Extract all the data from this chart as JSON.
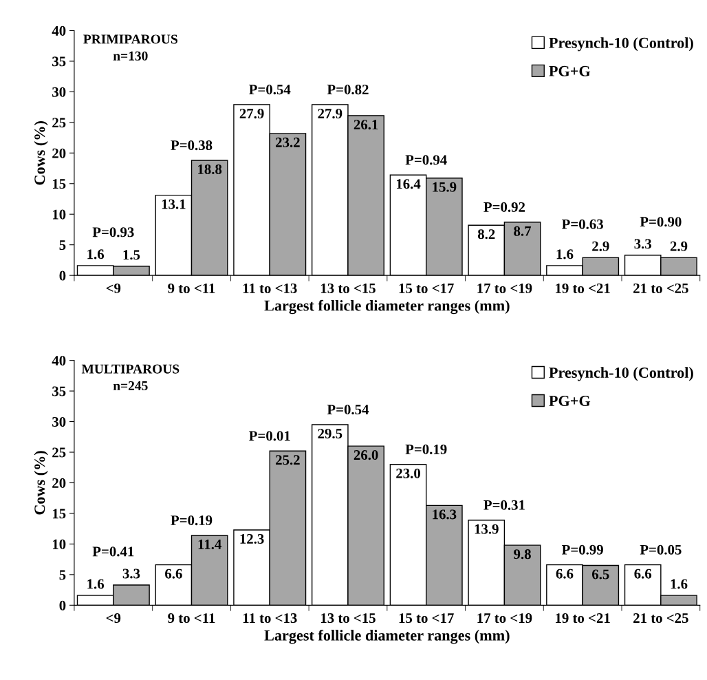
{
  "chart_data": [
    {
      "type": "bar",
      "title": "PRIMIPAROUS\nn=130",
      "xlabel": "Largest follicle diameter ranges (mm)",
      "ylabel": "Cows (%)",
      "categories": [
        "<9",
        "9 to <11",
        "11 to <13",
        "13 to <15",
        "15 to <17",
        "17 to <19",
        "19 to <21",
        "21 to <25"
      ],
      "series": [
        {
          "name": "Presynch-10 (Control)",
          "color": "#ffffff",
          "values": [
            1.6,
            13.1,
            27.9,
            27.9,
            16.4,
            8.2,
            1.6,
            3.3
          ],
          "value_labels": [
            "1.6",
            "13.1",
            "27.9",
            "27.9",
            "16.4",
            "8.2",
            "1.6",
            "3.3"
          ]
        },
        {
          "name": "PG+G",
          "color": "#a6a6a6",
          "values": [
            1.5,
            18.8,
            23.2,
            26.1,
            15.9,
            8.7,
            2.9,
            2.9
          ],
          "value_labels": [
            "1.5",
            "18.8",
            "23.2",
            "26.1",
            "15.9",
            "8.7",
            "2.9",
            "2.9"
          ]
        }
      ],
      "ylim": [
        0,
        40
      ],
      "yticks": [
        0,
        5,
        10,
        15,
        20,
        25,
        30,
        35,
        40
      ],
      "legend": "top right",
      "annotations": [
        "P=0.93",
        "P=0.38",
        "P=0.54",
        "P=0.82",
        "P=0.94",
        "P=0.92",
        "P=0.63",
        "P=0.90"
      ]
    },
    {
      "type": "bar",
      "title": "MULTIPAROUS\nn=245",
      "xlabel": "Largest follicle diameter ranges (mm)",
      "ylabel": "Cows (%)",
      "categories": [
        "<9",
        "9 to <11",
        "11 to <13",
        "13 to <15",
        "15 to <17",
        "17 to <19",
        "19 to <21",
        "21 to <25"
      ],
      "series": [
        {
          "name": "Presynch-10 (Control)",
          "color": "#ffffff",
          "values": [
            1.6,
            6.6,
            12.3,
            29.5,
            23.0,
            13.9,
            6.6,
            6.6
          ],
          "value_labels": [
            "1.6",
            "6.6",
            "12.3",
            "29.5",
            "23.0",
            "13.9",
            "6.6",
            "6.6"
          ]
        },
        {
          "name": "PG+G",
          "color": "#a6a6a6",
          "values": [
            3.3,
            11.4,
            25.2,
            26.0,
            16.3,
            9.8,
            6.5,
            1.6
          ],
          "value_labels": [
            "3.3",
            "11.4",
            "25.2",
            "26.0",
            "16.3",
            "9.8",
            "6.5",
            "1.6"
          ]
        }
      ],
      "ylim": [
        0,
        40
      ],
      "yticks": [
        0,
        5,
        10,
        15,
        20,
        25,
        30,
        35,
        40
      ],
      "legend": "top right",
      "annotations": [
        "P=0.41",
        "P=0.19",
        "P=0.01",
        "P=0.54",
        "P=0.19",
        "P=0.31",
        "P=0.99",
        "P=0.05"
      ]
    }
  ]
}
